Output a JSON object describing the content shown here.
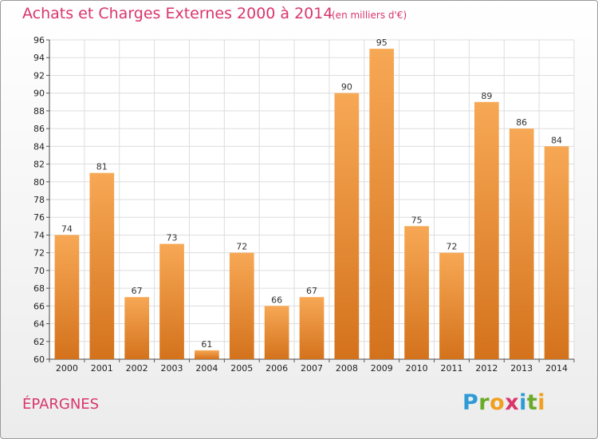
{
  "title": "Achats et Charges Externes 2000 à 2014",
  "subtitle": "(en milliers d'€)",
  "commune": "ÉPARGNES",
  "brand": {
    "letters": [
      {
        "char": "P",
        "color": "#2f9bd6"
      },
      {
        "char": "r",
        "color": "#6aaa2a"
      },
      {
        "char": "o",
        "color": "#f0a020"
      },
      {
        "char": "x",
        "color": "#d9356b"
      },
      {
        "char": "i",
        "color": "#2f9bd6"
      },
      {
        "char": "t",
        "color": "#6aaa2a"
      },
      {
        "char": "i",
        "color": "#f0a020"
      }
    ]
  },
  "colors": {
    "accent": "#d9356b",
    "bar_light": "#f7a855",
    "bar_dark": "#d4721c",
    "grid": "#dddddd"
  },
  "chart_data": {
    "type": "bar",
    "title": "Achats et Charges Externes 2000 à 2014",
    "subtitle": "(en milliers d'€)",
    "xlabel": "",
    "ylabel": "",
    "categories": [
      "2000",
      "2001",
      "2002",
      "2003",
      "2004",
      "2005",
      "2006",
      "2007",
      "2008",
      "2009",
      "2010",
      "2011",
      "2012",
      "2013",
      "2014"
    ],
    "values": [
      74,
      81,
      67,
      73,
      61,
      72,
      66,
      67,
      90,
      95,
      75,
      72,
      89,
      86,
      84
    ],
    "ylim": [
      60,
      96
    ],
    "yticks": [
      60,
      62,
      64,
      66,
      68,
      70,
      72,
      74,
      76,
      78,
      80,
      82,
      84,
      86,
      88,
      90,
      92,
      94,
      96
    ],
    "grid": true,
    "data_labels": true
  }
}
